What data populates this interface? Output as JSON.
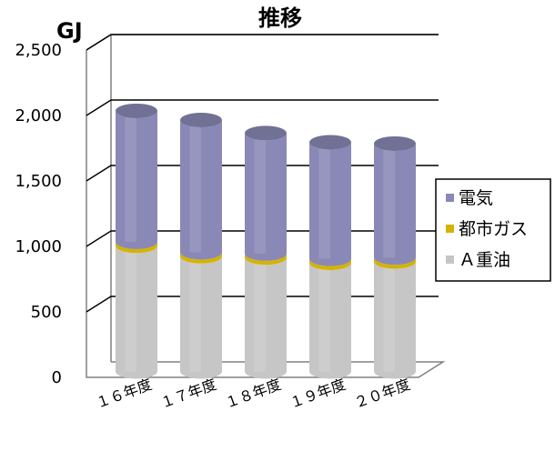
{
  "chart_data": {
    "type": "bar",
    "stacked": true,
    "style": "3d-cylinder",
    "title": "推移",
    "unit_label": "GJ",
    "categories": [
      "１６年度",
      "１７年度",
      "１８年度",
      "１９年度",
      "２０年度"
    ],
    "series": [
      {
        "name": "A重油",
        "values": [
          960,
          880,
          870,
          830,
          840
        ],
        "color": "#c6c6c6"
      },
      {
        "name": "都市ガス",
        "values": [
          30,
          30,
          30,
          30,
          30
        ],
        "color": "#d4b400"
      },
      {
        "name": "電気",
        "values": [
          1000,
          1010,
          920,
          890,
          870
        ],
        "color": "#8a88b6"
      }
    ],
    "ylim": [
      0,
      2500
    ],
    "yticks": [
      "0",
      "500",
      "1,000",
      "1,500",
      "2,000",
      "2,500"
    ],
    "ytick_values": [
      0,
      500,
      1000,
      1500,
      2000,
      2500
    ],
    "grid": true,
    "legend": {
      "position": "right",
      "order": [
        "電気",
        "都市ガス",
        "A重油"
      ],
      "labels": [
        "電気",
        "都市ガス",
        "Ａ重油"
      ]
    }
  }
}
